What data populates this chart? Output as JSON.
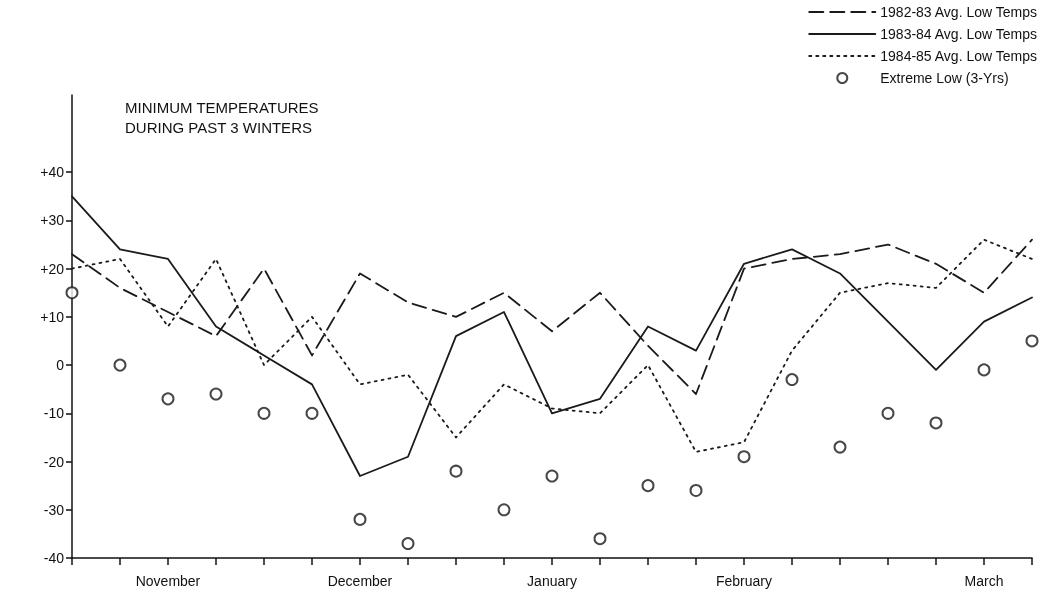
{
  "chart_data": {
    "type": "line",
    "title": "MINIMUM TEMPERATURES\nDURING PAST 3 WINTERS",
    "categories": [
      null,
      null,
      "November",
      null,
      null,
      null,
      "December",
      null,
      null,
      null,
      "January",
      null,
      null,
      null,
      "February",
      null,
      null,
      null,
      null,
      "March",
      null
    ],
    "ylim": [
      -40,
      56
    ],
    "yticks": [
      {
        "value": -40,
        "label": "-40"
      },
      {
        "value": -30,
        "label": "-30"
      },
      {
        "value": -20,
        "label": "-20"
      },
      {
        "value": -10,
        "label": "-10"
      },
      0,
      {
        "value": 10,
        "label": "+10"
      },
      {
        "value": 20,
        "label": "+20"
      },
      {
        "value": 30,
        "label": "+30"
      },
      {
        "value": 40,
        "label": "+40"
      }
    ],
    "grid": false,
    "legend": "top right",
    "series": [
      {
        "name": "1982-83 Avg. Low Temps",
        "color": "#1a1a1a",
        "line_style": "dashed",
        "values": [
          23,
          16,
          11,
          6,
          20,
          2,
          19,
          13,
          10,
          15,
          7,
          15,
          4,
          -6,
          20,
          22,
          23,
          25,
          21,
          15,
          26
        ]
      },
      {
        "name": "1983-84 Avg. Low Temps",
        "color": "#1a1a1a",
        "line_style": "solid",
        "values": [
          35,
          24,
          22,
          8,
          2,
          -4,
          -23,
          -19,
          6,
          11,
          -10,
          -7,
          8,
          3,
          21,
          24,
          19,
          9,
          -1,
          9,
          14
        ]
      },
      {
        "name": "1984-85 Avg. Low Temps",
        "color": "#1a1a1a",
        "line_style": "dotted",
        "values": [
          20,
          22,
          8,
          22,
          0,
          10,
          -4,
          -2,
          -15,
          -4,
          -9,
          -10,
          0,
          -18,
          -16,
          3,
          15,
          17,
          16,
          26,
          22
        ]
      },
      {
        "name": "Extreme Low (3-Yrs)",
        "type": "scatter",
        "marker": "circle",
        "color": "#1a1a1a",
        "values": [
          15,
          0,
          -7,
          -6,
          -10,
          -10,
          -32,
          -37,
          -22,
          -30,
          -23,
          -36,
          -25,
          -26,
          -19,
          -3,
          -17,
          -10,
          -12,
          -1,
          5
        ]
      }
    ]
  }
}
